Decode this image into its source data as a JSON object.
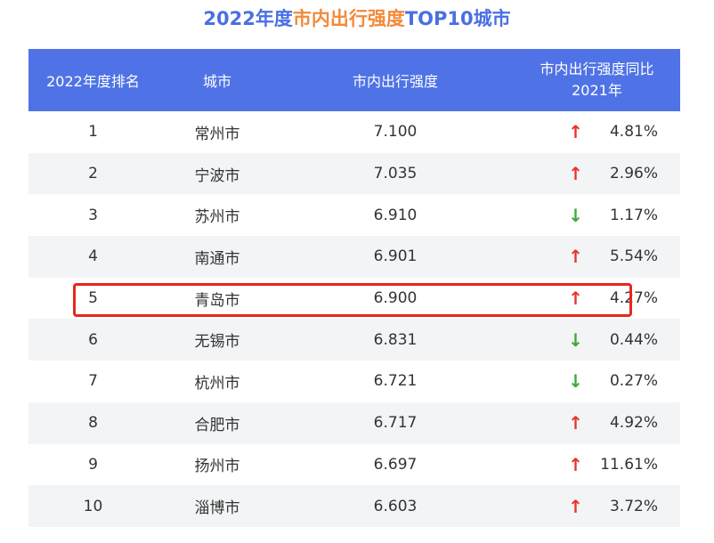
{
  "title": {
    "prefix": "2022年度",
    "highlight": "市内出行强度",
    "suffix": "TOP10城市"
  },
  "colors": {
    "header_bg": "#4f73e6",
    "up": "#e8342b",
    "down": "#3caa3c",
    "highlight_border": "#e8261e"
  },
  "chart_data": {
    "type": "table",
    "columns": [
      "2022年度排名",
      "城市",
      "市内出行强度",
      "市内出行强度同比2021年"
    ],
    "header_change_line1": "市内出行强度同比",
    "header_change_line2": "2021年",
    "rows": [
      {
        "rank": "1",
        "city": "常州市",
        "value": "7.100",
        "dir": "up",
        "arrow": "↑",
        "change": "4.81%"
      },
      {
        "rank": "2",
        "city": "宁波市",
        "value": "7.035",
        "dir": "up",
        "arrow": "↑",
        "change": "2.96%"
      },
      {
        "rank": "3",
        "city": "苏州市",
        "value": "6.910",
        "dir": "down",
        "arrow": "↓",
        "change": "1.17%"
      },
      {
        "rank": "4",
        "city": "南通市",
        "value": "6.901",
        "dir": "up",
        "arrow": "↑",
        "change": "5.54%"
      },
      {
        "rank": "5",
        "city": "青岛市",
        "value": "6.900",
        "dir": "up",
        "arrow": "↑",
        "change": "4.27%",
        "highlighted": true
      },
      {
        "rank": "6",
        "city": "无锡市",
        "value": "6.831",
        "dir": "down",
        "arrow": "↓",
        "change": "0.44%"
      },
      {
        "rank": "7",
        "city": "杭州市",
        "value": "6.721",
        "dir": "down",
        "arrow": "↓",
        "change": "0.27%"
      },
      {
        "rank": "8",
        "city": "合肥市",
        "value": "6.717",
        "dir": "up",
        "arrow": "↑",
        "change": "4.92%"
      },
      {
        "rank": "9",
        "city": "扬州市",
        "value": "6.697",
        "dir": "up",
        "arrow": "↑",
        "change": "11.61%"
      },
      {
        "rank": "10",
        "city": "淄博市",
        "value": "6.603",
        "dir": "up",
        "arrow": "↑",
        "change": "3.72%"
      }
    ]
  }
}
